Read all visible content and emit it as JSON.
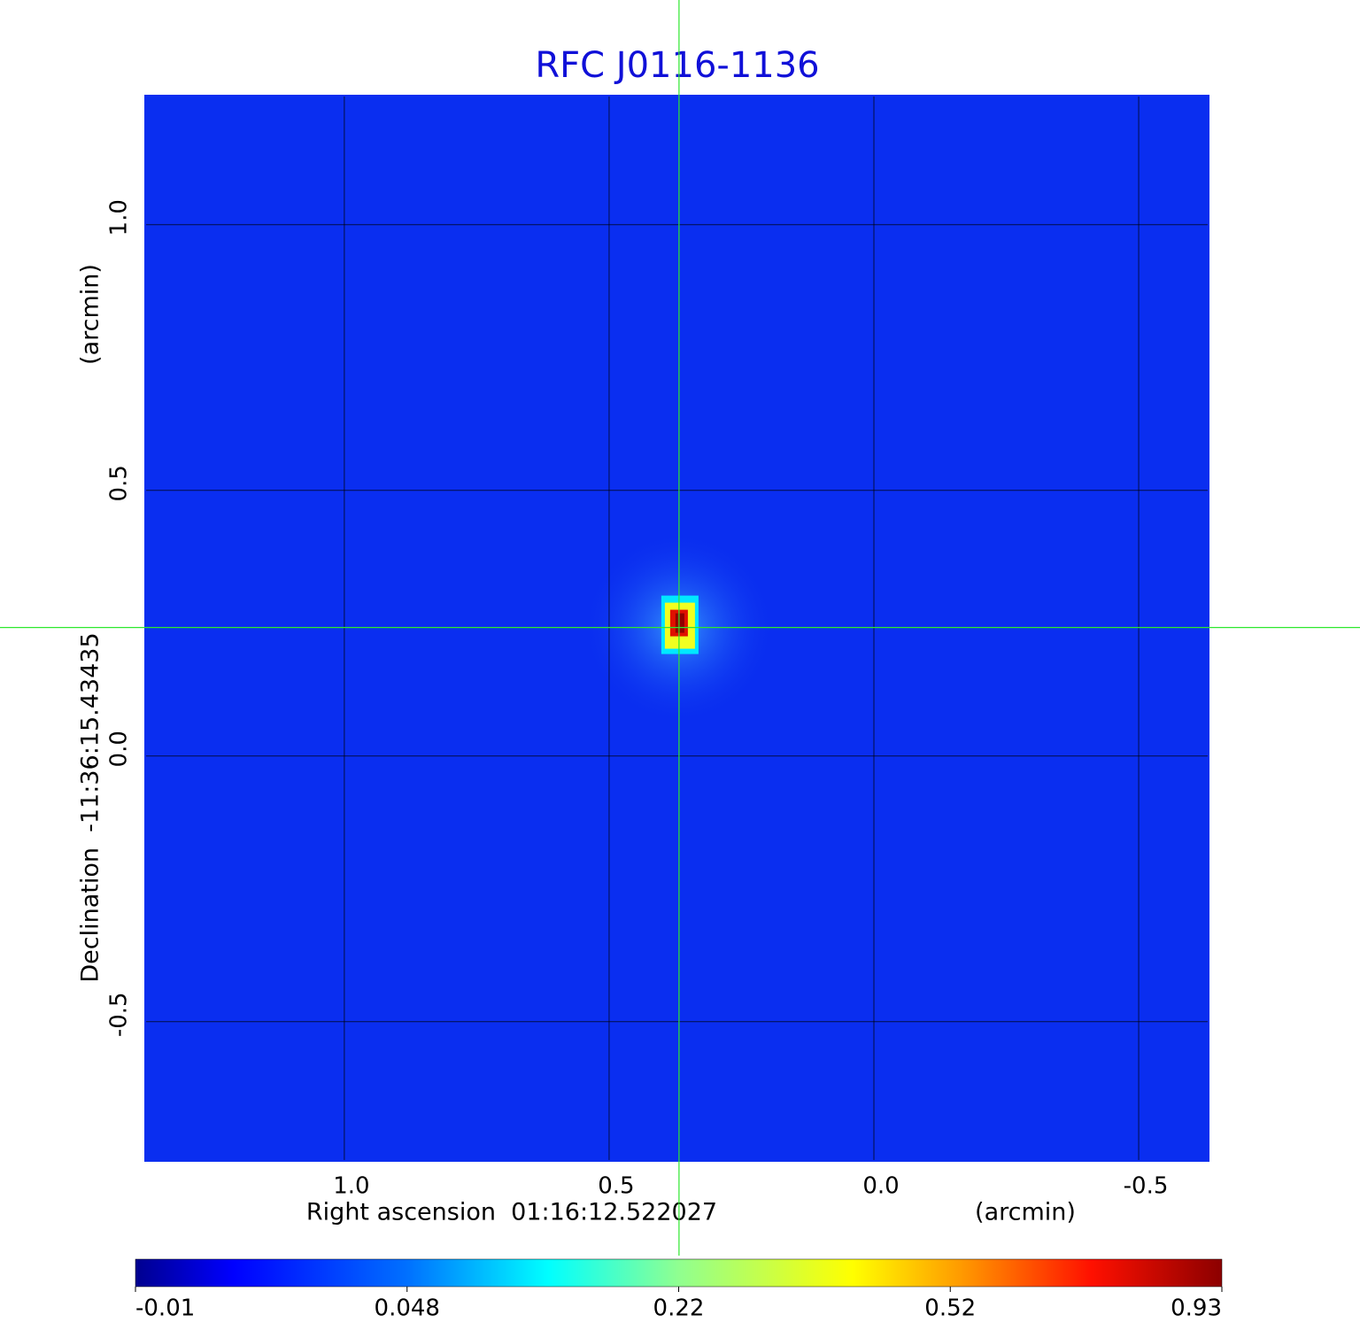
{
  "chart_data": {
    "type": "image",
    "title": "RFC J0116-1136",
    "x_label": "Right ascension  01:16:12.522027",
    "x_unit": "(arcmin)",
    "y_label": "Declination  -11:36:15.43435",
    "y_unit": "(arcmin)",
    "xlim": [
      1.376,
      -0.632
    ],
    "ylim": [
      -0.762,
      1.243
    ],
    "xticks": [
      {
        "value": 1,
        "label": "1.0"
      },
      0.5,
      {
        "value": 0,
        "label": "0.0"
      },
      -0.5
    ],
    "yticks": [
      {
        "value": 1,
        "label": "1.0"
      },
      0.5,
      {
        "value": 0,
        "label": "0.0"
      },
      -0.5
    ],
    "grid": true,
    "colormap": "jet",
    "peak": {
      "x": 0.368,
      "y": 0.242,
      "value": 0.93
    },
    "colorbar_ticks": [
      -0.01,
      0.048,
      0.22,
      0.52,
      0.93
    ]
  }
}
